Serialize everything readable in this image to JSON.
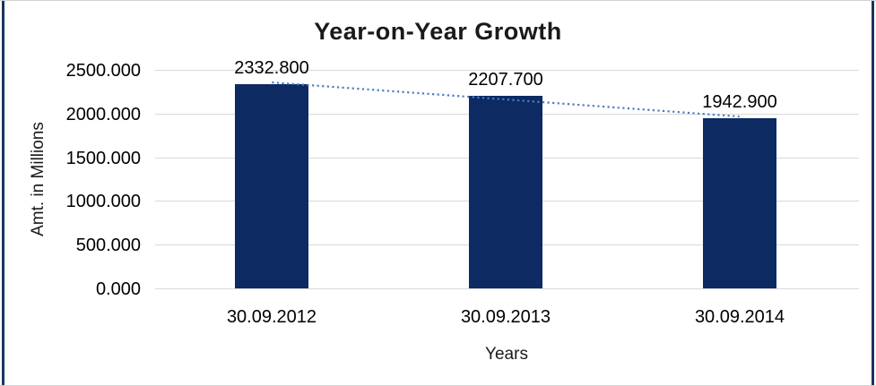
{
  "window": {
    "background": "#ffffff",
    "frame_border_color": "#d3d3d3",
    "edge_accent_color": "#17365d"
  },
  "chart_data": {
    "type": "bar",
    "title": "Year-on-Year Growth",
    "xlabel": "Years",
    "ylabel": "Amt. in Millions",
    "categories": [
      "30.09.2012",
      "30.09.2013",
      "30.09.2014"
    ],
    "values": [
      2332.8,
      2207.7,
      1942.9
    ],
    "data_labels": [
      "2332.800",
      "2207.700",
      "1942.900"
    ],
    "y_tick_values": [
      0,
      500,
      1000,
      1500,
      2000,
      2500
    ],
    "y_tick_labels": [
      "0.000",
      "500.000",
      "1000.000",
      "1500.000",
      "2000.000",
      "2500.000"
    ],
    "ylim": [
      0,
      2500
    ],
    "grid": true,
    "legend": "none",
    "bar_color": "#0d2a63",
    "gridline_color": "#d9d9d9",
    "trendline": {
      "type": "linear",
      "style": "dotted",
      "color": "#4a7ebf",
      "start_value": 2356.1,
      "end_value": 1966.2
    }
  }
}
